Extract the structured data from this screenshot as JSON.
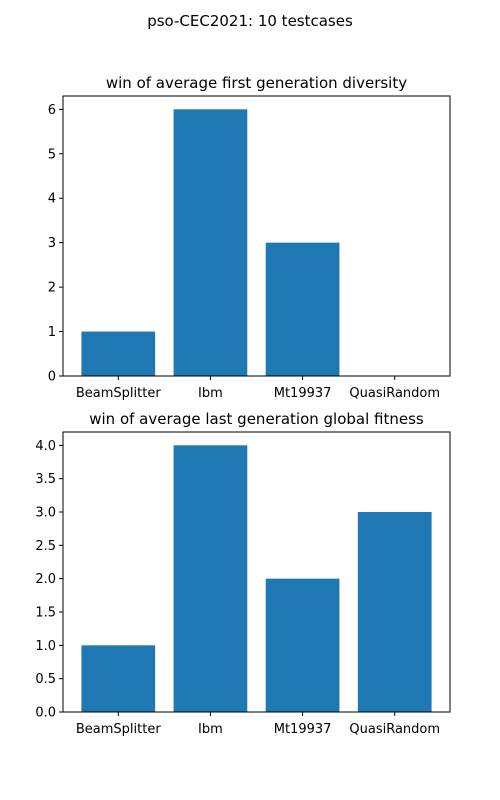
{
  "figure": {
    "suptitle": "pso-CEC2021: 10 testcases"
  },
  "colors": {
    "bar": "#1f77b4",
    "axis": "#000000",
    "background": "#ffffff"
  },
  "chart_data": [
    {
      "type": "bar",
      "title": "win of average first generation diversity",
      "categories": [
        "BeamSplitter",
        "Ibm",
        "Mt19937",
        "QuasiRandom"
      ],
      "values": [
        1,
        6,
        3,
        0
      ],
      "xlabel": "",
      "ylabel": "",
      "ylim": [
        0,
        6.3
      ],
      "yticks": [
        0,
        1,
        2,
        3,
        4,
        5,
        6
      ],
      "ytick_labels": [
        "0",
        "1",
        "2",
        "3",
        "4",
        "5",
        "6"
      ],
      "grid": false,
      "legend": null
    },
    {
      "type": "bar",
      "title": "win of average last generation global fitness",
      "categories": [
        "BeamSplitter",
        "Ibm",
        "Mt19937",
        "QuasiRandom"
      ],
      "values": [
        1,
        4,
        2,
        3
      ],
      "xlabel": "",
      "ylabel": "",
      "ylim": [
        0,
        4.2
      ],
      "yticks": [
        0,
        0.5,
        1,
        1.5,
        2,
        2.5,
        3,
        3.5,
        4
      ],
      "ytick_labels": [
        "0.0",
        "0.5",
        "1.0",
        "1.5",
        "2.0",
        "2.5",
        "3.0",
        "3.5",
        "4.0"
      ],
      "grid": false,
      "legend": null
    }
  ]
}
